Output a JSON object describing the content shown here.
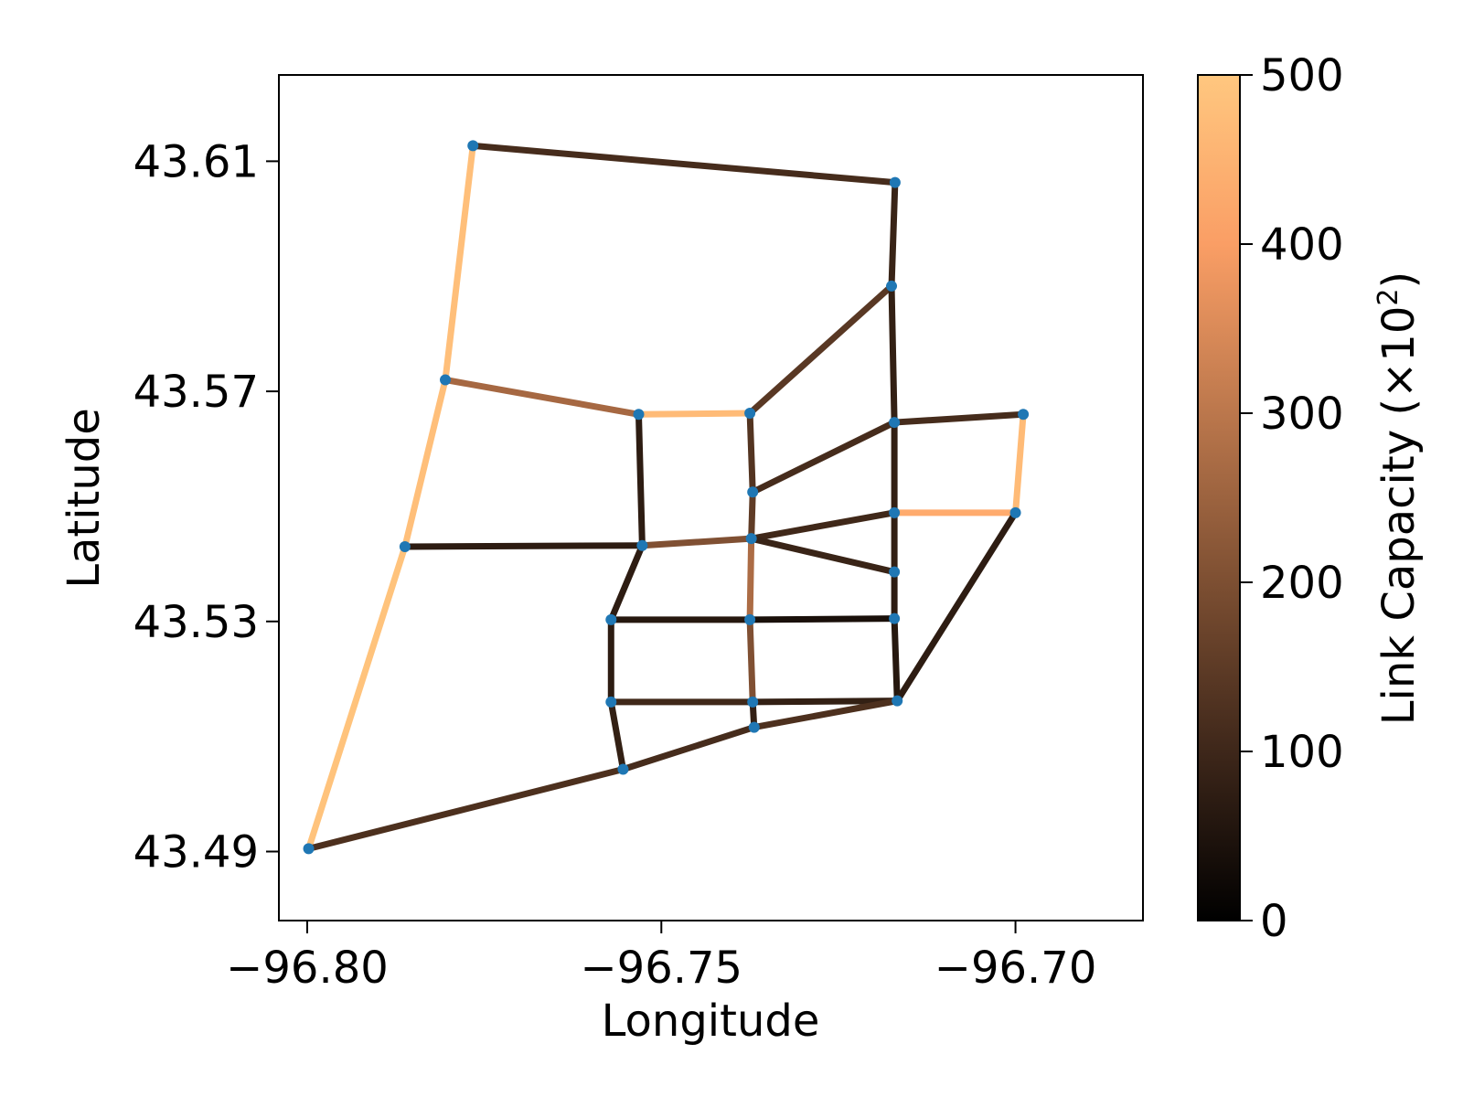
{
  "chart_data": {
    "type": "network",
    "xlabel": "Longitude",
    "ylabel": "Latitude",
    "xlim": [
      -96.804,
      -96.682
    ],
    "ylim": [
      43.478,
      43.625
    ],
    "xticks": [
      -96.8,
      -96.75,
      -96.7
    ],
    "xtick_labels": [
      "−96.80",
      "−96.75",
      "−96.70"
    ],
    "yticks": [
      43.49,
      43.53,
      43.57,
      43.61
    ],
    "ytick_labels": [
      "43.49",
      "43.53",
      "43.57",
      "43.61"
    ],
    "colorbar": {
      "label": "Link Capacity (×10",
      "label_exp": "2",
      "label_close": ")",
      "range": [
        0,
        500
      ],
      "ticks": [
        0,
        100,
        200,
        300,
        400,
        500
      ],
      "tick_labels": [
        "0",
        "100",
        "200",
        "300",
        "400",
        "500"
      ],
      "colormap": "copper"
    },
    "node_color": "#1f77b4",
    "nodes": [
      {
        "id": 1,
        "lon": -96.7766,
        "lat": 43.6127
      },
      {
        "id": 2,
        "lon": -96.717,
        "lat": 43.6063
      },
      {
        "id": 3,
        "lon": -96.7175,
        "lat": 43.5883
      },
      {
        "id": 4,
        "lon": -96.7805,
        "lat": 43.572
      },
      {
        "id": 5,
        "lon": -96.7532,
        "lat": 43.566
      },
      {
        "id": 6,
        "lon": -96.7375,
        "lat": 43.5662
      },
      {
        "id": 7,
        "lon": -96.7171,
        "lat": 43.5646
      },
      {
        "id": 8,
        "lon": -96.6989,
        "lat": 43.566
      },
      {
        "id": 9,
        "lon": -96.7371,
        "lat": 43.5525
      },
      {
        "id": 10,
        "lon": -96.7171,
        "lat": 43.5489
      },
      {
        "id": 11,
        "lon": -96.7,
        "lat": 43.5489
      },
      {
        "id": 12,
        "lon": -96.7862,
        "lat": 43.543
      },
      {
        "id": 13,
        "lon": -96.7527,
        "lat": 43.5432
      },
      {
        "id": 14,
        "lon": -96.7373,
        "lat": 43.5444
      },
      {
        "id": 15,
        "lon": -96.7171,
        "lat": 43.5386
      },
      {
        "id": 16,
        "lon": -96.7571,
        "lat": 43.5303
      },
      {
        "id": 17,
        "lon": -96.7375,
        "lat": 43.5303
      },
      {
        "id": 18,
        "lon": -96.7171,
        "lat": 43.5305
      },
      {
        "id": 19,
        "lon": -96.7571,
        "lat": 43.516
      },
      {
        "id": 20,
        "lon": -96.7371,
        "lat": 43.516
      },
      {
        "id": 21,
        "lon": -96.7167,
        "lat": 43.5162
      },
      {
        "id": 22,
        "lon": -96.7369,
        "lat": 43.5116
      },
      {
        "id": 23,
        "lon": -96.7554,
        "lat": 43.5043
      },
      {
        "id": 24,
        "lon": -96.7998,
        "lat": 43.4905
      }
    ],
    "links": [
      {
        "from": 1,
        "to": 2,
        "capacity": 110
      },
      {
        "from": 2,
        "to": 3,
        "capacity": 90
      },
      {
        "from": 1,
        "to": 4,
        "capacity": 480
      },
      {
        "from": 4,
        "to": 12,
        "capacity": 480
      },
      {
        "from": 12,
        "to": 24,
        "capacity": 490
      },
      {
        "from": 4,
        "to": 5,
        "capacity": 260
      },
      {
        "from": 5,
        "to": 6,
        "capacity": 470
      },
      {
        "from": 6,
        "to": 3,
        "capacity": 140
      },
      {
        "from": 3,
        "to": 7,
        "capacity": 80
      },
      {
        "from": 7,
        "to": 8,
        "capacity": 110
      },
      {
        "from": 8,
        "to": 11,
        "capacity": 470
      },
      {
        "from": 11,
        "to": 10,
        "capacity": 430
      },
      {
        "from": 7,
        "to": 9,
        "capacity": 110
      },
      {
        "from": 6,
        "to": 9,
        "capacity": 130
      },
      {
        "from": 9,
        "to": 14,
        "capacity": 150
      },
      {
        "from": 5,
        "to": 13,
        "capacity": 70
      },
      {
        "from": 12,
        "to": 13,
        "capacity": 70
      },
      {
        "from": 13,
        "to": 14,
        "capacity": 200
      },
      {
        "from": 14,
        "to": 10,
        "capacity": 100
      },
      {
        "from": 14,
        "to": 15,
        "capacity": 90
      },
      {
        "from": 7,
        "to": 10,
        "capacity": 80
      },
      {
        "from": 10,
        "to": 15,
        "capacity": 80
      },
      {
        "from": 14,
        "to": 17,
        "capacity": 270
      },
      {
        "from": 13,
        "to": 16,
        "capacity": 70
      },
      {
        "from": 16,
        "to": 17,
        "capacity": 60
      },
      {
        "from": 17,
        "to": 18,
        "capacity": 40
      },
      {
        "from": 15,
        "to": 18,
        "capacity": 70
      },
      {
        "from": 16,
        "to": 19,
        "capacity": 70
      },
      {
        "from": 17,
        "to": 20,
        "capacity": 200
      },
      {
        "from": 18,
        "to": 21,
        "capacity": 60
      },
      {
        "from": 19,
        "to": 20,
        "capacity": 100
      },
      {
        "from": 20,
        "to": 21,
        "capacity": 80
      },
      {
        "from": 11,
        "to": 21,
        "capacity": 70
      },
      {
        "from": 20,
        "to": 22,
        "capacity": 80
      },
      {
        "from": 19,
        "to": 23,
        "capacity": 80
      },
      {
        "from": 22,
        "to": 21,
        "capacity": 120
      },
      {
        "from": 23,
        "to": 22,
        "capacity": 110
      },
      {
        "from": 24,
        "to": 23,
        "capacity": 120
      }
    ]
  }
}
